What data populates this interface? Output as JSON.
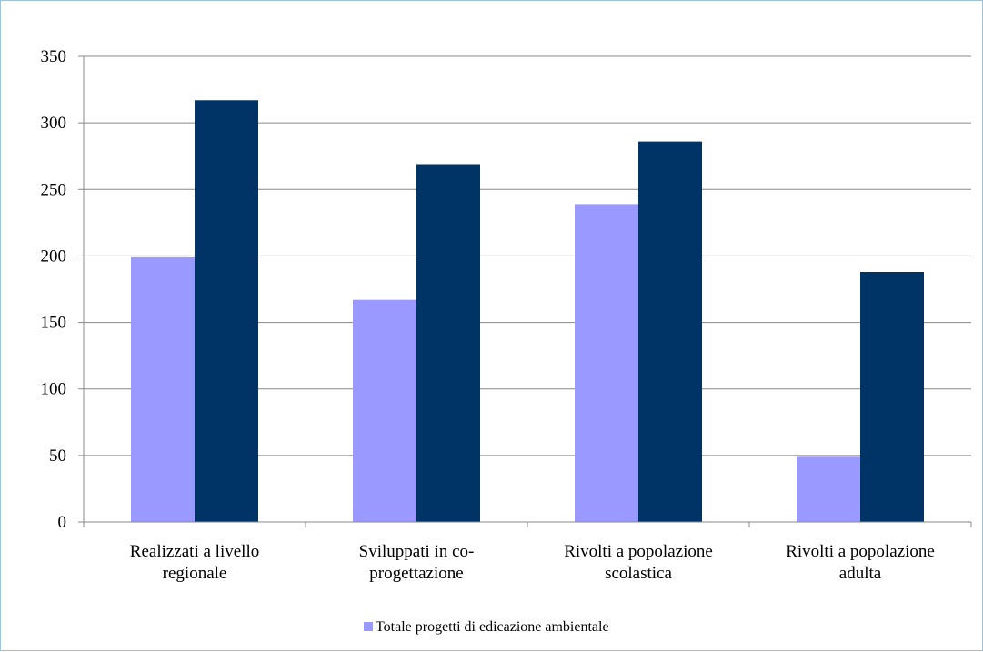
{
  "chart_data": {
    "type": "bar",
    "title": "",
    "xlabel": "",
    "ylabel": "",
    "ylim": [
      0,
      350
    ],
    "yticks": [
      0,
      50,
      100,
      150,
      200,
      250,
      300,
      350
    ],
    "grid": true,
    "legend_position": "bottom",
    "categories": [
      [
        "Realizzati a livello",
        "regionale"
      ],
      [
        "Sviluppati in co-",
        "progettazione"
      ],
      [
        "Rivolti a popolazione",
        "scolastica"
      ],
      [
        "Rivolti a popolazione",
        "adulta"
      ]
    ],
    "series": [
      {
        "name": "Totale progetti di edicazione ambientale",
        "color": "#9999ff",
        "values": [
          199,
          167,
          239,
          49
        ],
        "show_in_legend": true
      },
      {
        "name": "",
        "color": "#003366",
        "values": [
          317,
          269,
          286,
          188
        ],
        "show_in_legend": false
      }
    ]
  }
}
